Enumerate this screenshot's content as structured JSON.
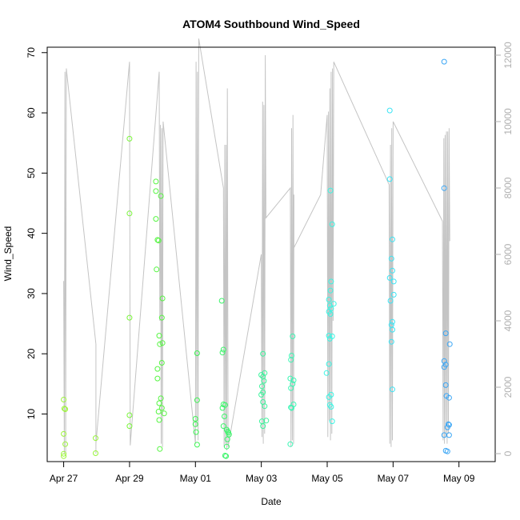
{
  "chart_data": {
    "type": "scatter",
    "title": "ATOM4 Southbound Wind_Speed",
    "xlabel": "Date",
    "ylabel": "Wind_Speed",
    "x_ticks": [
      {
        "label": "Apr 27",
        "day": 0
      },
      {
        "label": "Apr 29",
        "day": 2
      },
      {
        "label": "May 01",
        "day": 4
      },
      {
        "label": "May 03",
        "day": 6
      },
      {
        "label": "May 05",
        "day": 8
      },
      {
        "label": "May 07",
        "day": 10
      },
      {
        "label": "May 09",
        "day": 12
      }
    ],
    "xlim": [
      -0.5,
      13.1
    ],
    "ylim": [
      2.1,
      70.9
    ],
    "y_ticks": [
      10,
      20,
      30,
      40,
      50,
      60,
      70
    ],
    "y2lim": [
      -240,
      12240
    ],
    "y2_ticks": [
      0,
      2000,
      4000,
      6000,
      8000,
      10000,
      12000
    ],
    "points": [
      {
        "x": 0.0,
        "y": 12.4,
        "color": "#9cf53a"
      },
      {
        "x": 0.02,
        "y": 10.9,
        "color": "#9cf53a"
      },
      {
        "x": 0.05,
        "y": 10.8,
        "color": "#9cf53a"
      },
      {
        "x": 0.0,
        "y": 6.7,
        "color": "#9cf53a"
      },
      {
        "x": 0.05,
        "y": 5.0,
        "color": "#9cf53a"
      },
      {
        "x": 0.0,
        "y": 3.4,
        "color": "#9cf53a"
      },
      {
        "x": 0.0,
        "y": 3.0,
        "color": "#9cf53a"
      },
      {
        "x": 0.97,
        "y": 6.0,
        "color": "#98f53b"
      },
      {
        "x": 0.97,
        "y": 3.5,
        "color": "#98f53b"
      },
      {
        "x": 2.0,
        "y": 55.7,
        "color": "#7af53a"
      },
      {
        "x": 2.0,
        "y": 43.3,
        "color": "#7af53a"
      },
      {
        "x": 2.0,
        "y": 26.0,
        "color": "#7af53a"
      },
      {
        "x": 2.0,
        "y": 9.8,
        "color": "#7af53a"
      },
      {
        "x": 2.0,
        "y": 8.0,
        "color": "#7af53a"
      },
      {
        "x": 2.8,
        "y": 48.6,
        "color": "#56f542"
      },
      {
        "x": 2.8,
        "y": 47.0,
        "color": "#56f542"
      },
      {
        "x": 2.95,
        "y": 46.2,
        "color": "#56f542"
      },
      {
        "x": 2.8,
        "y": 42.4,
        "color": "#56f542"
      },
      {
        "x": 2.85,
        "y": 38.9,
        "color": "#56f542"
      },
      {
        "x": 2.88,
        "y": 38.8,
        "color": "#56f542"
      },
      {
        "x": 2.82,
        "y": 34.0,
        "color": "#56f542"
      },
      {
        "x": 3.0,
        "y": 29.2,
        "color": "#56f542"
      },
      {
        "x": 2.98,
        "y": 26.0,
        "color": "#56f542"
      },
      {
        "x": 2.9,
        "y": 23.0,
        "color": "#56f542"
      },
      {
        "x": 2.92,
        "y": 21.6,
        "color": "#56f542"
      },
      {
        "x": 3.0,
        "y": 21.8,
        "color": "#56f542"
      },
      {
        "x": 2.98,
        "y": 18.5,
        "color": "#56f542"
      },
      {
        "x": 2.85,
        "y": 17.5,
        "color": "#56f542"
      },
      {
        "x": 2.85,
        "y": 15.9,
        "color": "#56f542"
      },
      {
        "x": 2.95,
        "y": 12.6,
        "color": "#56f542"
      },
      {
        "x": 2.9,
        "y": 11.8,
        "color": "#56f542"
      },
      {
        "x": 2.98,
        "y": 11.0,
        "color": "#56f542"
      },
      {
        "x": 2.88,
        "y": 10.4,
        "color": "#56f542"
      },
      {
        "x": 3.05,
        "y": 10.1,
        "color": "#56f542"
      },
      {
        "x": 2.9,
        "y": 9.0,
        "color": "#56f542"
      },
      {
        "x": 2.92,
        "y": 4.2,
        "color": "#56f542"
      },
      {
        "x": 4.05,
        "y": 20.1,
        "color": "#3df553"
      },
      {
        "x": 4.05,
        "y": 12.3,
        "color": "#3df553"
      },
      {
        "x": 4.0,
        "y": 9.2,
        "color": "#3df553"
      },
      {
        "x": 4.0,
        "y": 8.3,
        "color": "#3df553"
      },
      {
        "x": 4.02,
        "y": 7.0,
        "color": "#3df553"
      },
      {
        "x": 4.05,
        "y": 4.9,
        "color": "#3df553"
      },
      {
        "x": 4.8,
        "y": 28.8,
        "color": "#3bf56a"
      },
      {
        "x": 4.85,
        "y": 20.7,
        "color": "#3bf56a"
      },
      {
        "x": 4.82,
        "y": 20.2,
        "color": "#3bf56a"
      },
      {
        "x": 4.85,
        "y": 11.6,
        "color": "#3bf56a"
      },
      {
        "x": 4.9,
        "y": 11.5,
        "color": "#3bf56a"
      },
      {
        "x": 4.82,
        "y": 11.0,
        "color": "#3bf56a"
      },
      {
        "x": 4.88,
        "y": 9.6,
        "color": "#3bf56a"
      },
      {
        "x": 4.85,
        "y": 8.0,
        "color": "#3bf56a"
      },
      {
        "x": 4.95,
        "y": 7.4,
        "color": "#3bf56a"
      },
      {
        "x": 4.98,
        "y": 7.1,
        "color": "#3bf56a"
      },
      {
        "x": 5.0,
        "y": 6.9,
        "color": "#3bf56a"
      },
      {
        "x": 5.02,
        "y": 6.6,
        "color": "#3bf56a"
      },
      {
        "x": 4.97,
        "y": 5.8,
        "color": "#3bf56a"
      },
      {
        "x": 4.95,
        "y": 4.6,
        "color": "#3bf56a"
      },
      {
        "x": 4.9,
        "y": 3.1,
        "color": "#3bf56a"
      },
      {
        "x": 4.93,
        "y": 3.0,
        "color": "#3bf56a"
      },
      {
        "x": 6.05,
        "y": 20.0,
        "color": "#3bf59c"
      },
      {
        "x": 6.0,
        "y": 16.5,
        "color": "#3bf59c"
      },
      {
        "x": 6.1,
        "y": 16.8,
        "color": "#3bf59c"
      },
      {
        "x": 6.05,
        "y": 16.2,
        "color": "#3bf59c"
      },
      {
        "x": 6.08,
        "y": 15.5,
        "color": "#3bf59c"
      },
      {
        "x": 6.02,
        "y": 14.6,
        "color": "#3bf59c"
      },
      {
        "x": 6.05,
        "y": 13.6,
        "color": "#3bf59c"
      },
      {
        "x": 6.0,
        "y": 13.2,
        "color": "#3bf59c"
      },
      {
        "x": 6.05,
        "y": 12.0,
        "color": "#3bf59c"
      },
      {
        "x": 6.1,
        "y": 11.3,
        "color": "#3bf59c"
      },
      {
        "x": 6.02,
        "y": 8.8,
        "color": "#3bf59c"
      },
      {
        "x": 6.15,
        "y": 8.9,
        "color": "#3bf59c"
      },
      {
        "x": 6.05,
        "y": 8.0,
        "color": "#3bf59c"
      },
      {
        "x": 6.95,
        "y": 22.9,
        "color": "#3bf5b4"
      },
      {
        "x": 6.92,
        "y": 19.7,
        "color": "#3bf5b4"
      },
      {
        "x": 6.9,
        "y": 19.0,
        "color": "#3bf5b4"
      },
      {
        "x": 6.88,
        "y": 15.9,
        "color": "#3bf5b4"
      },
      {
        "x": 6.98,
        "y": 15.6,
        "color": "#3bf5b4"
      },
      {
        "x": 6.95,
        "y": 15.0,
        "color": "#3bf5b4"
      },
      {
        "x": 6.9,
        "y": 14.3,
        "color": "#3bf5b4"
      },
      {
        "x": 6.98,
        "y": 11.6,
        "color": "#3bf5b4"
      },
      {
        "x": 6.9,
        "y": 11.1,
        "color": "#3bf5b4"
      },
      {
        "x": 6.92,
        "y": 11.0,
        "color": "#3bf5b4"
      },
      {
        "x": 6.88,
        "y": 5.0,
        "color": "#3bf5b4"
      },
      {
        "x": 8.1,
        "y": 47.1,
        "color": "#3bf5e4"
      },
      {
        "x": 8.15,
        "y": 41.5,
        "color": "#3bf5e4"
      },
      {
        "x": 8.12,
        "y": 32.0,
        "color": "#3bf5e4"
      },
      {
        "x": 8.1,
        "y": 30.5,
        "color": "#3bf5e4"
      },
      {
        "x": 8.05,
        "y": 29.0,
        "color": "#3bf5e4"
      },
      {
        "x": 8.2,
        "y": 28.3,
        "color": "#3bf5e4"
      },
      {
        "x": 8.08,
        "y": 28.0,
        "color": "#3bf5e4"
      },
      {
        "x": 8.12,
        "y": 27.5,
        "color": "#3bf5e4"
      },
      {
        "x": 8.05,
        "y": 27.0,
        "color": "#3bf5e4"
      },
      {
        "x": 8.1,
        "y": 26.6,
        "color": "#3bf5e4"
      },
      {
        "x": 8.05,
        "y": 23.0,
        "color": "#3bf5e4"
      },
      {
        "x": 8.15,
        "y": 22.9,
        "color": "#3bf5e4"
      },
      {
        "x": 8.08,
        "y": 22.5,
        "color": "#3bf5e4"
      },
      {
        "x": 8.05,
        "y": 18.3,
        "color": "#3bf5e4"
      },
      {
        "x": 7.98,
        "y": 16.8,
        "color": "#3bf5e4"
      },
      {
        "x": 8.12,
        "y": 13.2,
        "color": "#3bf5e4"
      },
      {
        "x": 8.05,
        "y": 12.8,
        "color": "#3bf5e4"
      },
      {
        "x": 8.08,
        "y": 11.5,
        "color": "#3bf5e4"
      },
      {
        "x": 8.12,
        "y": 11.2,
        "color": "#3bf5e4"
      },
      {
        "x": 8.15,
        "y": 8.8,
        "color": "#3bf5e4"
      },
      {
        "x": 9.9,
        "y": 60.4,
        "color": "#3be4f5"
      },
      {
        "x": 9.9,
        "y": 49.0,
        "color": "#3be4f5"
      },
      {
        "x": 9.98,
        "y": 39.0,
        "color": "#3be4f5"
      },
      {
        "x": 9.95,
        "y": 35.8,
        "color": "#3be4f5"
      },
      {
        "x": 9.98,
        "y": 33.8,
        "color": "#3be4f5"
      },
      {
        "x": 9.9,
        "y": 32.6,
        "color": "#3be4f5"
      },
      {
        "x": 10.02,
        "y": 32.0,
        "color": "#3be4f5"
      },
      {
        "x": 10.02,
        "y": 29.8,
        "color": "#3be4f5"
      },
      {
        "x": 9.92,
        "y": 28.8,
        "color": "#3be4f5"
      },
      {
        "x": 9.98,
        "y": 25.3,
        "color": "#3be4f5"
      },
      {
        "x": 9.95,
        "y": 24.8,
        "color": "#3be4f5"
      },
      {
        "x": 9.98,
        "y": 24.0,
        "color": "#3be4f5"
      },
      {
        "x": 9.95,
        "y": 22.0,
        "color": "#3be4f5"
      },
      {
        "x": 9.98,
        "y": 14.1,
        "color": "#3be4f5"
      },
      {
        "x": 11.55,
        "y": 68.5,
        "color": "#3ba6f5"
      },
      {
        "x": 11.55,
        "y": 47.5,
        "color": "#3ba6f5"
      },
      {
        "x": 11.6,
        "y": 23.4,
        "color": "#3ba6f5"
      },
      {
        "x": 11.72,
        "y": 21.6,
        "color": "#3ba6f5"
      },
      {
        "x": 11.55,
        "y": 18.8,
        "color": "#3ba6f5"
      },
      {
        "x": 11.6,
        "y": 18.2,
        "color": "#3ba6f5"
      },
      {
        "x": 11.55,
        "y": 17.8,
        "color": "#3ba6f5"
      },
      {
        "x": 11.6,
        "y": 14.8,
        "color": "#3ba6f5"
      },
      {
        "x": 11.62,
        "y": 13.0,
        "color": "#3ba6f5"
      },
      {
        "x": 11.7,
        "y": 12.7,
        "color": "#3ba6f5"
      },
      {
        "x": 11.68,
        "y": 8.3,
        "color": "#3ba6f5"
      },
      {
        "x": 11.7,
        "y": 8.2,
        "color": "#3ba6f5"
      },
      {
        "x": 11.65,
        "y": 7.8,
        "color": "#3ba6f5"
      },
      {
        "x": 11.55,
        "y": 6.5,
        "color": "#3ba6f5"
      },
      {
        "x": 11.7,
        "y": 6.5,
        "color": "#3ba6f5"
      },
      {
        "x": 11.6,
        "y": 3.9,
        "color": "#3ba6f5"
      },
      {
        "x": 11.65,
        "y": 3.8,
        "color": "#3ba6f5"
      }
    ],
    "line_points": [
      [
        0.0,
        5200
      ],
      [
        0.02,
        0
      ],
      [
        0.04,
        11500
      ],
      [
        0.06,
        0
      ],
      [
        0.08,
        11600
      ],
      [
        0.98,
        3300
      ],
      [
        0.98,
        0
      ],
      [
        0.98,
        300
      ],
      [
        2.0,
        11800
      ],
      [
        2.02,
        250
      ],
      [
        2.9,
        11500
      ],
      [
        2.92,
        4000
      ],
      [
        2.94,
        9900
      ],
      [
        2.96,
        300
      ],
      [
        2.98,
        9800
      ],
      [
        3.0,
        200
      ],
      [
        3.02,
        10000
      ],
      [
        4.0,
        300
      ],
      [
        4.02,
        11800
      ],
      [
        4.04,
        800
      ],
      [
        4.06,
        11500
      ],
      [
        4.08,
        400
      ],
      [
        4.1,
        12500
      ],
      [
        4.85,
        8000
      ],
      [
        4.87,
        200
      ],
      [
        4.89,
        9300
      ],
      [
        4.91,
        300
      ],
      [
        4.93,
        9300
      ],
      [
        4.95,
        100
      ],
      [
        4.97,
        11000
      ],
      [
        4.99,
        200
      ],
      [
        6.0,
        6000
      ],
      [
        6.02,
        500
      ],
      [
        6.04,
        10600
      ],
      [
        6.06,
        300
      ],
      [
        6.08,
        10500
      ],
      [
        6.1,
        600
      ],
      [
        6.12,
        12000
      ],
      [
        6.14,
        7100
      ],
      [
        6.88,
        8000
      ],
      [
        6.9,
        200
      ],
      [
        6.92,
        9800
      ],
      [
        6.94,
        400
      ],
      [
        6.96,
        10200
      ],
      [
        6.98,
        300
      ],
      [
        6.99,
        7800
      ],
      [
        6.99,
        6200
      ],
      [
        7.8,
        7800
      ],
      [
        8.0,
        10200
      ],
      [
        8.02,
        500
      ],
      [
        8.04,
        10300
      ],
      [
        8.06,
        1000
      ],
      [
        8.08,
        11000
      ],
      [
        8.1,
        400
      ],
      [
        8.12,
        11500
      ],
      [
        8.14,
        600
      ],
      [
        8.16,
        11600
      ],
      [
        8.18,
        4000
      ],
      [
        8.2,
        11800
      ],
      [
        9.88,
        8100
      ],
      [
        9.9,
        300
      ],
      [
        9.92,
        9300
      ],
      [
        9.94,
        200
      ],
      [
        9.96,
        9800
      ],
      [
        9.98,
        400
      ],
      [
        10.0,
        10000
      ],
      [
        11.5,
        7000
      ],
      [
        11.52,
        400
      ],
      [
        11.54,
        9500
      ],
      [
        11.56,
        300
      ],
      [
        11.58,
        9600
      ],
      [
        11.6,
        500
      ],
      [
        11.62,
        9700
      ],
      [
        11.64,
        300
      ],
      [
        11.66,
        9700
      ],
      [
        11.68,
        600
      ],
      [
        11.7,
        9800
      ],
      [
        11.72,
        6400
      ]
    ]
  }
}
